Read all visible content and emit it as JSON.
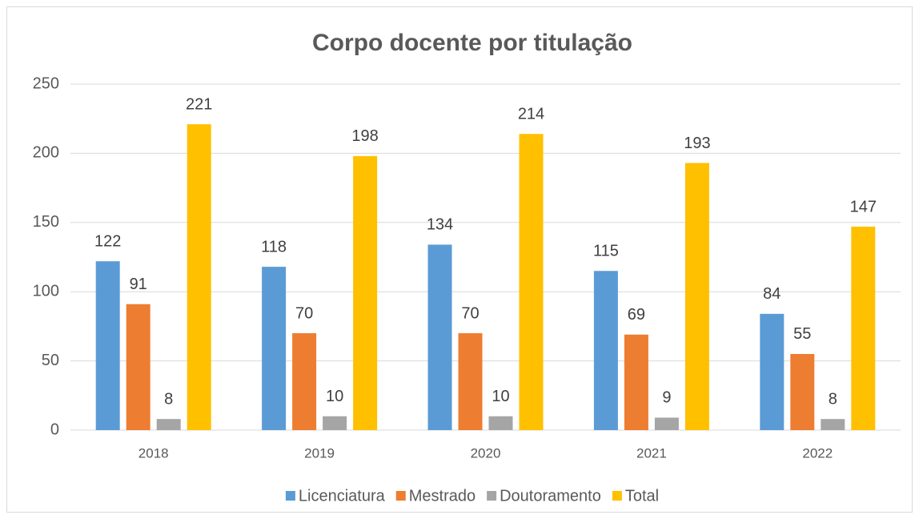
{
  "chart_data": {
    "type": "bar",
    "title": "Corpo docente por titulação",
    "categories": [
      "2018",
      "2019",
      "2020",
      "2021",
      "2022"
    ],
    "series": [
      {
        "name": "Licenciatura",
        "color": "#5b9bd5",
        "values": [
          122,
          118,
          134,
          115,
          84
        ]
      },
      {
        "name": "Mestrado",
        "color": "#ed7d31",
        "values": [
          91,
          70,
          70,
          69,
          55
        ]
      },
      {
        "name": "Doutoramento",
        "color": "#a5a5a5",
        "values": [
          8,
          10,
          10,
          9,
          8
        ]
      },
      {
        "name": "Total",
        "color": "#ffc000",
        "values": [
          221,
          198,
          214,
          193,
          147
        ]
      }
    ],
    "ylim": [
      0,
      250
    ],
    "yticks": [
      0,
      50,
      100,
      150,
      200,
      250
    ],
    "grid": true,
    "legend": "bottom"
  }
}
